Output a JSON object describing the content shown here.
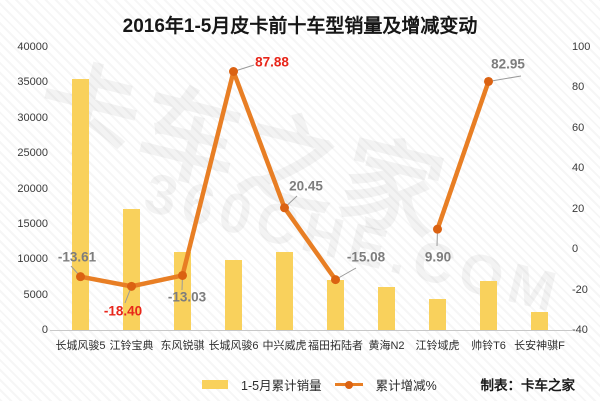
{
  "title": "2016年1-5月皮卡前十车型销量及增减变动",
  "credit": "制表：卡车之家",
  "watermark": {
    "line1": "卡车之家",
    "line2": "360CHE.COM"
  },
  "colors": {
    "bar": "#F9D15C",
    "line": "#E87E24",
    "marker": "#DB6212",
    "label_red": "#E8261A",
    "label_gray": "#7D7D7D",
    "leader": "#9a9a9a",
    "axis_text": "#3a3a3a"
  },
  "legend": [
    {
      "label": "1-5月累计销量",
      "type": "bar"
    },
    {
      "label": "累计增减%",
      "type": "line"
    }
  ],
  "chart_data": {
    "type": "bar+line combo",
    "title": "2016年1-5月皮卡前十车型销量及增减变动",
    "categories": [
      "长城风骏5",
      "江铃宝典",
      "东风锐骐",
      "长城风骏6",
      "中兴威虎",
      "福田拓陆者",
      "黄海N2",
      "江铃域虎",
      "帅铃T6",
      "长安神骐F"
    ],
    "series": [
      {
        "name": "1-5月累计销量",
        "type": "bar",
        "axis": "left",
        "values": [
          35500,
          17100,
          11000,
          9900,
          11000,
          7100,
          6100,
          4400,
          6900,
          2500
        ],
        "note": "values estimated from left axis gridlines; bars are unlabeled"
      },
      {
        "name": "累计增减%",
        "type": "line",
        "axis": "right",
        "values": [
          -13.61,
          -18.4,
          -13.03,
          87.88,
          20.45,
          -15.08,
          null,
          9.9,
          82.95,
          null
        ],
        "labels": [
          "-13.61",
          "-18.40",
          "-13.03",
          "87.88",
          "20.45",
          "-15.08",
          null,
          "9.90",
          "82.95",
          null
        ],
        "label_colors": [
          "gray",
          "red",
          "gray",
          "red",
          "gray",
          "gray",
          null,
          "gray",
          "gray",
          null
        ]
      }
    ],
    "left_axis": {
      "min": 0,
      "max": 40000,
      "step": 5000,
      "tick_labels": [
        "0",
        "5000",
        "10000",
        "15000",
        "20000",
        "25000",
        "30000",
        "35000",
        "40000"
      ]
    },
    "right_axis": {
      "min": -40,
      "max": 100,
      "step": 20,
      "tick_labels": [
        "-40",
        "-20",
        "0",
        "20",
        "40",
        "60",
        "80",
        "100"
      ]
    },
    "grid": false,
    "legend_position": "bottom"
  }
}
